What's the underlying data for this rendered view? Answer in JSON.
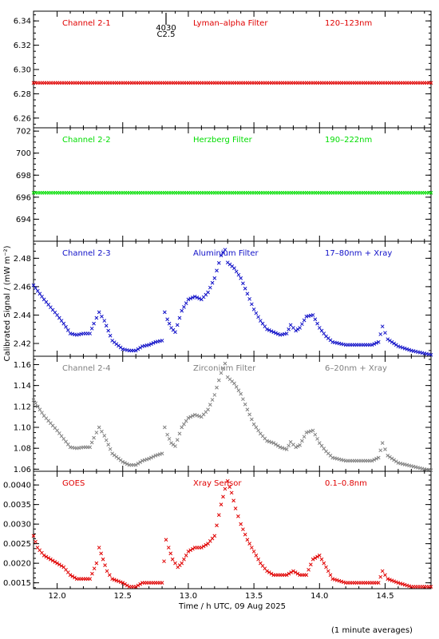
{
  "ylabel": "Calibrated Signal / (mW m⁻²)",
  "xlabel": "Time / h UTC, 09 Aug 2025",
  "footnote": "(1 minute averages)",
  "x_ticks": [
    "12.0",
    "12.5",
    "13.0",
    "13.5",
    "14.0",
    "14.5"
  ],
  "marker": {
    "x": 12.83,
    "top_label": "4030",
    "bottom_label": "C2.5"
  },
  "colors": {
    "ch21": "#e00000",
    "ch22": "#00dd00",
    "ch23": "#1010c8",
    "ch24": "#808080",
    "goes": "#e00000",
    "axis": "#000000"
  },
  "chart_data": [
    {
      "type": "scatter",
      "panel": "Channel 2-1",
      "labels": [
        "Channel 2-1",
        "Lyman–alpha Filter",
        "120–123nm"
      ],
      "color": "#e00000",
      "xlim": [
        11.82,
        14.85
      ],
      "ylim": [
        6.252,
        6.348
      ],
      "yticks": [
        "6.26",
        "6.28",
        "6.30",
        "6.32",
        "6.34"
      ],
      "series": [
        {
          "x": [
            11.82,
            14.85
          ],
          "y": [
            6.289,
            6.289
          ]
        }
      ]
    },
    {
      "type": "scatter",
      "panel": "Channel 2-2",
      "labels": [
        "Channel 2-2",
        "Herzberg Filter",
        "190–222nm"
      ],
      "color": "#00dd00",
      "xlim": [
        11.82,
        14.85
      ],
      "ylim": [
        692.0,
        702.3
      ],
      "yticks": [
        "694",
        "696",
        "698",
        "700",
        "702"
      ],
      "series": [
        {
          "x": [
            11.82,
            14.85
          ],
          "y": [
            696.4,
            696.4
          ]
        }
      ]
    },
    {
      "type": "scatter",
      "panel": "Channel 2-3",
      "labels": [
        "Channel 2-3",
        "Aluminium Filter",
        "17–80nm + Xray"
      ],
      "color": "#1010c8",
      "xlim": [
        11.82,
        14.85
      ],
      "ylim": [
        2.411,
        2.492
      ],
      "yticks": [
        "2.42",
        "2.44",
        "2.46",
        "2.48"
      ],
      "series": [
        {
          "x": [
            11.82,
            11.9,
            12.0,
            12.05,
            12.1,
            12.15,
            12.2,
            12.25,
            12.28,
            12.32,
            12.36,
            12.42,
            12.5,
            12.55,
            12.6,
            12.65,
            12.7,
            12.75,
            12.8,
            12.82,
            12.84,
            12.87,
            12.9,
            12.95,
            13.0,
            13.05,
            13.1,
            13.15,
            13.2,
            13.25,
            13.28,
            13.3,
            13.35,
            13.4,
            13.45,
            13.5,
            13.55,
            13.6,
            13.65,
            13.7,
            13.75,
            13.78,
            13.82,
            13.85,
            13.9,
            13.95,
            14.0,
            14.05,
            14.1,
            14.2,
            14.3,
            14.4,
            14.45,
            14.48,
            14.52,
            14.6,
            14.7,
            14.8,
            14.85
          ],
          "y": [
            2.461,
            2.451,
            2.44,
            2.434,
            2.427,
            2.426,
            2.427,
            2.427,
            2.434,
            2.442,
            2.436,
            2.422,
            2.416,
            2.415,
            2.415,
            2.418,
            2.419,
            2.421,
            2.422,
            2.442,
            2.437,
            2.431,
            2.428,
            2.443,
            2.451,
            2.453,
            2.451,
            2.456,
            2.466,
            2.482,
            2.486,
            2.477,
            2.473,
            2.466,
            2.455,
            2.444,
            2.436,
            2.43,
            2.428,
            2.426,
            2.427,
            2.433,
            2.429,
            2.431,
            2.439,
            2.44,
            2.431,
            2.425,
            2.421,
            2.419,
            2.419,
            2.419,
            2.421,
            2.432,
            2.423,
            2.418,
            2.415,
            2.413,
            2.412
          ]
        }
      ]
    },
    {
      "type": "scatter",
      "panel": "Channel 2-4",
      "labels": [
        "Channel 2-4",
        "Zirconium Filter",
        "6–20nm + Xray"
      ],
      "color": "#808080",
      "xlim": [
        11.82,
        14.85
      ],
      "ylim": [
        1.058,
        1.168
      ],
      "yticks": [
        "1.06",
        "1.08",
        "1.10",
        "1.12",
        "1.14",
        "1.16"
      ],
      "series": [
        {
          "x": [
            11.82,
            11.9,
            12.0,
            12.05,
            12.1,
            12.15,
            12.2,
            12.25,
            12.28,
            12.32,
            12.36,
            12.42,
            12.5,
            12.55,
            12.6,
            12.65,
            12.7,
            12.75,
            12.8,
            12.82,
            12.84,
            12.87,
            12.9,
            12.95,
            13.0,
            13.05,
            13.1,
            13.15,
            13.2,
            13.25,
            13.28,
            13.3,
            13.35,
            13.4,
            13.45,
            13.5,
            13.55,
            13.6,
            13.65,
            13.7,
            13.75,
            13.78,
            13.82,
            13.85,
            13.9,
            13.95,
            14.0,
            14.05,
            14.1,
            14.2,
            14.3,
            14.4,
            14.45,
            14.48,
            14.52,
            14.6,
            14.7,
            14.8,
            14.85
          ],
          "y": [
            1.126,
            1.111,
            1.097,
            1.089,
            1.081,
            1.08,
            1.081,
            1.081,
            1.09,
            1.1,
            1.092,
            1.075,
            1.067,
            1.064,
            1.064,
            1.068,
            1.07,
            1.073,
            1.075,
            1.1,
            1.093,
            1.085,
            1.082,
            1.1,
            1.109,
            1.112,
            1.11,
            1.117,
            1.131,
            1.152,
            1.161,
            1.148,
            1.142,
            1.132,
            1.117,
            1.103,
            1.094,
            1.087,
            1.085,
            1.081,
            1.079,
            1.086,
            1.081,
            1.083,
            1.095,
            1.097,
            1.085,
            1.077,
            1.071,
            1.068,
            1.068,
            1.068,
            1.071,
            1.085,
            1.073,
            1.066,
            1.063,
            1.06,
            1.059
          ]
        }
      ]
    },
    {
      "type": "scatter",
      "panel": "GOES",
      "labels": [
        "GOES",
        "Xray Sensor",
        "0.1–0.8nm"
      ],
      "color": "#e00000",
      "xlim": [
        11.82,
        14.85
      ],
      "ylim": [
        0.00135,
        0.00435
      ],
      "yticks": [
        "0.0015",
        "0.0020",
        "0.0025",
        "0.0030",
        "0.0035",
        "0.0040"
      ],
      "series": [
        {
          "x": [
            11.82,
            11.85,
            11.9,
            11.95,
            12.0,
            12.05,
            12.1,
            12.15,
            12.2,
            12.25,
            12.3,
            12.32,
            12.35,
            12.38,
            12.42,
            12.5,
            12.55,
            12.6,
            12.65,
            12.7,
            12.75,
            12.8,
            12.83,
            12.85,
            12.88,
            12.92,
            12.95,
            13.0,
            13.05,
            13.1,
            13.15,
            13.2,
            13.25,
            13.28,
            13.3,
            13.33,
            13.36,
            13.4,
            13.45,
            13.5,
            13.55,
            13.6,
            13.65,
            13.7,
            13.75,
            13.8,
            13.85,
            13.9,
            13.95,
            14.0,
            14.05,
            14.1,
            14.2,
            14.3,
            14.4,
            14.45,
            14.48,
            14.52,
            14.6,
            14.7,
            14.8,
            14.85
          ],
          "y": [
            0.0027,
            0.0024,
            0.0022,
            0.0021,
            0.002,
            0.0019,
            0.0017,
            0.0016,
            0.0016,
            0.0016,
            0.002,
            0.0024,
            0.0021,
            0.0018,
            0.0016,
            0.0015,
            0.0014,
            0.0014,
            0.0015,
            0.0015,
            0.0015,
            0.0015,
            0.0026,
            0.0024,
            0.0021,
            0.0019,
            0.002,
            0.0023,
            0.0024,
            0.0024,
            0.0025,
            0.0027,
            0.0035,
            0.0039,
            0.0041,
            0.0038,
            0.0034,
            0.003,
            0.0026,
            0.0023,
            0.002,
            0.0018,
            0.0017,
            0.0017,
            0.0017,
            0.0018,
            0.0017,
            0.0017,
            0.0021,
            0.0022,
            0.0019,
            0.0016,
            0.0015,
            0.0015,
            0.0015,
            0.0015,
            0.0018,
            0.0016,
            0.0015,
            0.0014,
            0.0014,
            0.0014
          ]
        }
      ]
    }
  ]
}
